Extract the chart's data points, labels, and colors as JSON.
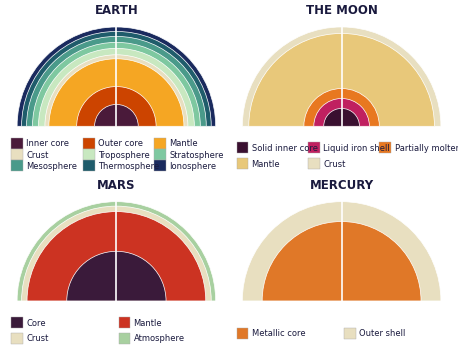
{
  "title_fontsize": 8.5,
  "title_color": "#1a1a3e",
  "legend_fontsize": 6.0,
  "background": "#ffffff",
  "planets": [
    {
      "title": "EARTH",
      "layers": [
        {
          "label": "Ionosphere",
          "r": 1.0,
          "color": "#1a2a5e"
        },
        {
          "label": "Thermosphere",
          "r": 0.955,
          "color": "#1f5c6b"
        },
        {
          "label": "Mesosphere",
          "r": 0.905,
          "color": "#4a9a8a"
        },
        {
          "label": "Stratosphere",
          "r": 0.845,
          "color": "#7ec8a0"
        },
        {
          "label": "Troposphere",
          "r": 0.785,
          "color": "#c8e8c0"
        },
        {
          "label": "Crust",
          "r": 0.72,
          "color": "#e8dfc0"
        },
        {
          "label": "Mantle",
          "r": 0.68,
          "color": "#f5a623"
        },
        {
          "label": "Outer core",
          "r": 0.4,
          "color": "#cc4400"
        },
        {
          "label": "Inner core",
          "r": 0.22,
          "color": "#4a1a3a"
        }
      ],
      "legend": [
        [
          {
            "label": "Inner core",
            "color": "#4a1a3a"
          },
          {
            "label": "Crust",
            "color": "#e8dfc0"
          },
          {
            "label": "Mesosphere",
            "color": "#4a9a8a"
          }
        ],
        [
          {
            "label": "Outer core",
            "color": "#cc4400"
          },
          {
            "label": "Troposphere",
            "color": "#c8e8c0"
          },
          {
            "label": "Thermosphere",
            "color": "#1f5c6b"
          }
        ],
        [
          {
            "label": "Mantle",
            "color": "#f5a623"
          },
          {
            "label": "Stratosphere",
            "color": "#7ec8a0"
          },
          {
            "label": "Ionosphere",
            "color": "#1a2a5e"
          }
        ]
      ]
    },
    {
      "title": "THE MOON",
      "layers": [
        {
          "label": "Crust",
          "r": 1.0,
          "color": "#e8dfc0"
        },
        {
          "label": "Mantle",
          "r": 0.935,
          "color": "#e8c87a"
        },
        {
          "label": "Partially molten layer",
          "r": 0.38,
          "color": "#e87820"
        },
        {
          "label": "Liquid iron shell",
          "r": 0.28,
          "color": "#c02060"
        },
        {
          "label": "Solid inner core",
          "r": 0.18,
          "color": "#3a1030"
        }
      ],
      "legend": [
        [
          {
            "label": "Solid inner core",
            "color": "#3a1030"
          },
          {
            "label": "Mantle",
            "color": "#e8c87a"
          }
        ],
        [
          {
            "label": "Liquid iron shell",
            "color": "#c02060"
          },
          {
            "label": "Crust",
            "color": "#e8dfc0"
          }
        ],
        [
          {
            "label": "Partially molten layer",
            "color": "#e87820"
          }
        ]
      ]
    },
    {
      "title": "MARS",
      "layers": [
        {
          "label": "Atmosphere",
          "r": 1.0,
          "color": "#a8d0a0"
        },
        {
          "label": "Crust",
          "r": 0.955,
          "color": "#e8dfc0"
        },
        {
          "label": "Mantle",
          "r": 0.9,
          "color": "#cc3322"
        },
        {
          "label": "Core",
          "r": 0.5,
          "color": "#3a1a3a"
        }
      ],
      "legend": [
        [
          {
            "label": "Core",
            "color": "#3a1a3a"
          },
          {
            "label": "Crust",
            "color": "#e8dfc0"
          }
        ],
        [
          {
            "label": "Mantle",
            "color": "#cc3322"
          },
          {
            "label": "Atmosphere",
            "color": "#a8d0a0"
          }
        ]
      ]
    },
    {
      "title": "MERCURY",
      "layers": [
        {
          "label": "Outer shell",
          "r": 1.0,
          "color": "#e8dfc0"
        },
        {
          "label": "Metallic core",
          "r": 0.8,
          "color": "#e07828"
        }
      ],
      "legend": [
        [
          {
            "label": "Metallic core",
            "color": "#e07828"
          }
        ],
        [
          {
            "label": "Outer shell",
            "color": "#e8dfc0"
          }
        ]
      ]
    }
  ]
}
